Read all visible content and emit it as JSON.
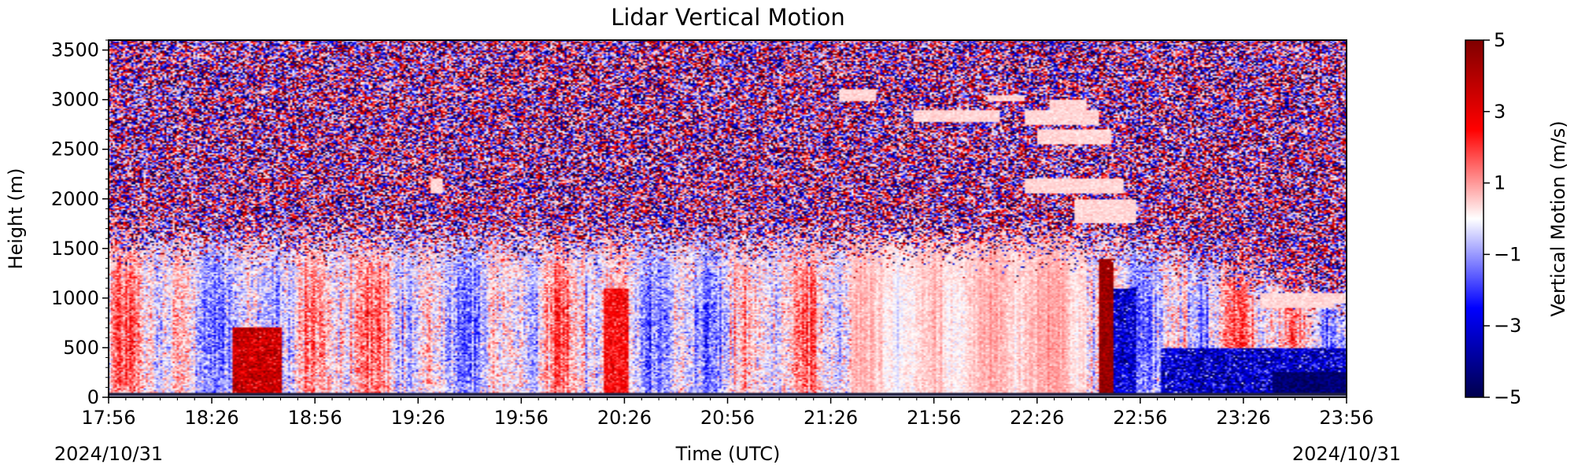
{
  "chart_data": {
    "type": "heatmap",
    "title": "Lidar Vertical Motion",
    "xlabel": "Time (UTC)",
    "ylabel": "Height (m)",
    "x_range": [
      "17:56",
      "23:56"
    ],
    "x_ticks": [
      "17:56",
      "18:26",
      "18:56",
      "19:26",
      "19:56",
      "20:26",
      "20:56",
      "21:26",
      "21:56",
      "22:26",
      "22:56",
      "23:26",
      "23:56"
    ],
    "date_start": "2024/10/31",
    "date_end": "2024/10/31",
    "ylim": [
      0,
      3600
    ],
    "y_ticks": [
      0,
      500,
      1000,
      1500,
      2000,
      2500,
      3000,
      3500
    ],
    "colorbar": {
      "label": "Vertical Motion (m/s)",
      "range": [
        -5,
        5
      ],
      "ticks": [
        5,
        3,
        1,
        -1,
        -3,
        -5
      ],
      "tick_labels": [
        "5",
        "3",
        "1",
        "−1",
        "−3",
        "−5"
      ],
      "colormap": "seismic",
      "colors": [
        "#00004c",
        "#0000ff",
        "#ffffff",
        "#ff0000",
        "#7f0000"
      ]
    },
    "field": {
      "description_of_regions": [
        {
          "time_start": "17:56",
          "time_end": "22:46",
          "height_top": 1500,
          "pattern": "mixed updrafts and downdrafts, magnitude about 1-3 m/s"
        },
        {
          "time_start": "18:36",
          "time_end": "18:46",
          "height_top": 600,
          "pattern": "strong updraft, about 4 m/s"
        },
        {
          "time_start": "22:46",
          "time_end": "22:52",
          "height_top": 1400,
          "pattern": "strong updraft, about 4-5 m/s"
        },
        {
          "time_start": "22:52",
          "time_end": "23:56",
          "height_top": 1000,
          "pattern": "downdraft, about -2 to -5 m/s"
        },
        {
          "time_start": "17:56",
          "time_end": "23:56",
          "height_bottom": 1600,
          "pattern": "noise above boundary layer, random +/-5 m/s"
        },
        {
          "time_start": "21:26",
          "time_end": "22:46",
          "height_bottom": 2100,
          "height_top": 3000,
          "pattern": "cloud layer, near zero vertical motion"
        }
      ]
    }
  }
}
